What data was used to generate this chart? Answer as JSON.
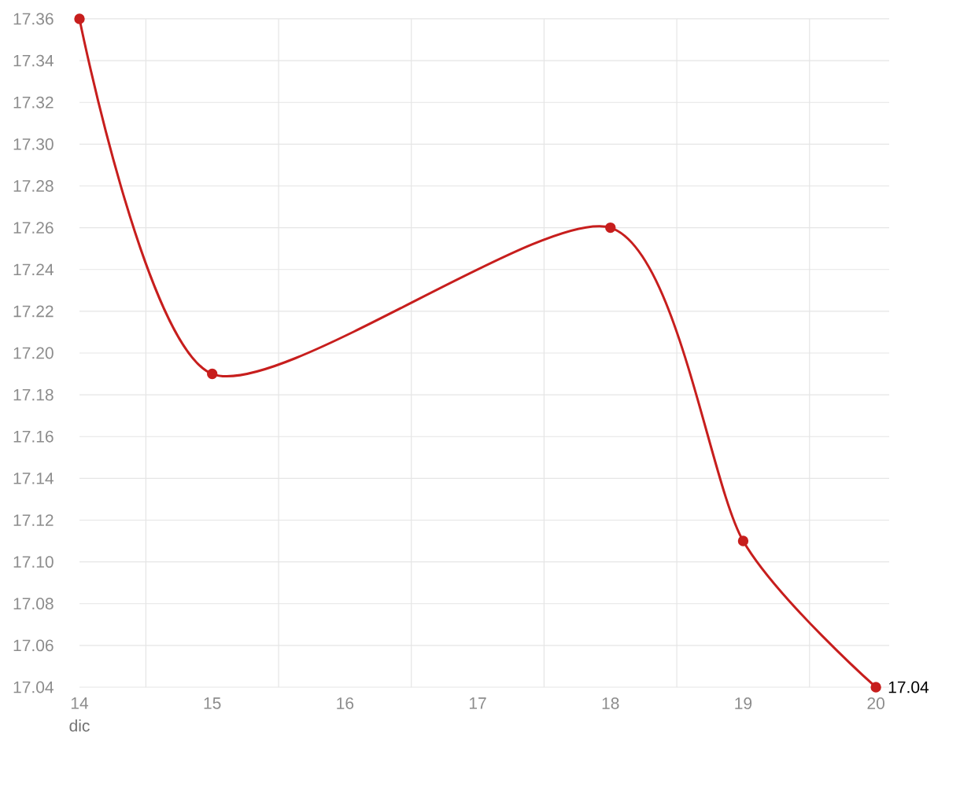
{
  "chart_data": {
    "type": "line",
    "xlabel": "dic",
    "x": [
      14,
      15,
      18,
      19,
      20
    ],
    "series": [
      {
        "color": "#c71e1d",
        "values": [
          17.36,
          17.19,
          17.26,
          17.11,
          17.04
        ],
        "value_labels": [
          null,
          null,
          null,
          null,
          "17.04"
        ]
      }
    ],
    "xlim": [
      14,
      20.1
    ],
    "xticks": [
      14,
      15,
      16,
      17,
      18,
      19,
      20
    ],
    "ylim": [
      17.04,
      17.36
    ],
    "yticks": [
      17.04,
      17.06,
      17.08,
      {
        "value": 17.1,
        "label": "17.10"
      },
      17.12,
      17.14,
      17.16,
      17.18,
      {
        "value": 17.2,
        "label": "17.20"
      },
      17.22,
      17.24,
      17.26,
      17.28,
      {
        "value": 17.3,
        "label": "17.30"
      },
      17.32,
      17.34,
      17.36
    ],
    "grid": true,
    "marker": "circle",
    "line_style": "solid"
  }
}
